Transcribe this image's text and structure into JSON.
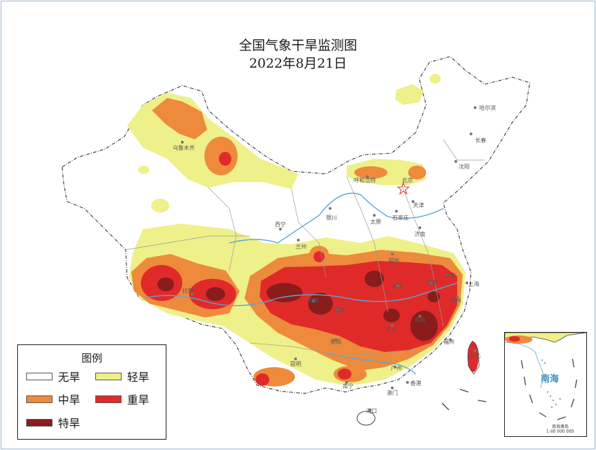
{
  "map": {
    "title": "全国气象干旱监测图",
    "date": "2022年8月21日"
  },
  "legend": {
    "title": "图例",
    "items": [
      {
        "label": "无旱",
        "color": "#ffffff"
      },
      {
        "label": "轻旱",
        "color": "#eef08a"
      },
      {
        "label": "中旱",
        "color": "#ee8a3c"
      },
      {
        "label": "重旱",
        "color": "#e02a2a"
      },
      {
        "label": "特旱",
        "color": "#8a1c1c"
      }
    ]
  },
  "cities": [
    {
      "name": "哈尔滨"
    },
    {
      "name": "长春"
    },
    {
      "name": "沈阳"
    },
    {
      "name": "乌鲁木齐"
    },
    {
      "name": "呼和浩特"
    },
    {
      "name": "北京"
    },
    {
      "name": "天津"
    },
    {
      "name": "太原"
    },
    {
      "name": "石家庄"
    },
    {
      "name": "济南"
    },
    {
      "name": "银川"
    },
    {
      "name": "西宁"
    },
    {
      "name": "兰州"
    },
    {
      "name": "郑州"
    },
    {
      "name": "拉萨"
    },
    {
      "name": "成都"
    },
    {
      "name": "重庆"
    },
    {
      "name": "武汉"
    },
    {
      "name": "合肥"
    },
    {
      "name": "南京"
    },
    {
      "name": "上海"
    },
    {
      "name": "杭州"
    },
    {
      "name": "长沙"
    },
    {
      "name": "南昌"
    },
    {
      "name": "福州"
    },
    {
      "name": "台北"
    },
    {
      "name": "贵阳"
    },
    {
      "name": "昆明"
    },
    {
      "name": "南宁"
    },
    {
      "name": "广州"
    },
    {
      "name": "香港"
    },
    {
      "name": "澳门"
    },
    {
      "name": "海口"
    }
  ],
  "inset": {
    "sea_label": "南海",
    "caption_line1": "南海诸岛",
    "caption_line2": "1:40 000 000"
  }
}
